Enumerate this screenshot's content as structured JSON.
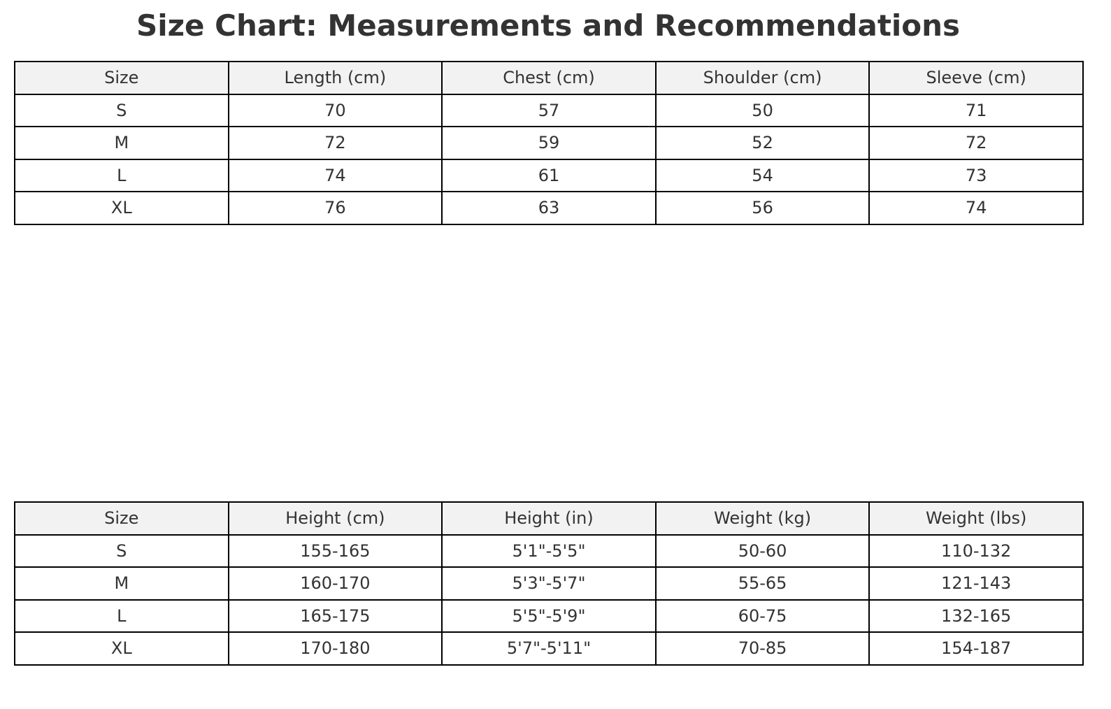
{
  "chart_data": {
    "type": "table",
    "title": "Size Chart: Measurements and Recommendations",
    "header_bg": "#f2f2f2",
    "tables": [
      {
        "columns": [
          "Size",
          "Length (cm)",
          "Chest (cm)",
          "Shoulder (cm)",
          "Sleeve (cm)"
        ],
        "rows": [
          [
            "S",
            "70",
            "57",
            "50",
            "71"
          ],
          [
            "M",
            "72",
            "59",
            "52",
            "72"
          ],
          [
            "L",
            "74",
            "61",
            "54",
            "73"
          ],
          [
            "XL",
            "76",
            "63",
            "56",
            "74"
          ]
        ]
      },
      {
        "columns": [
          "Size",
          "Height (cm)",
          "Height (in)",
          "Weight (kg)",
          "Weight (lbs)"
        ],
        "rows": [
          [
            "S",
            "155-165",
            "5'1\"-5'5\"",
            "50-60",
            "110-132"
          ],
          [
            "M",
            "160-170",
            "5'3\"-5'7\"",
            "55-65",
            "121-143"
          ],
          [
            "L",
            "165-175",
            "5'5\"-5'9\"",
            "60-75",
            "132-165"
          ],
          [
            "XL",
            "170-180",
            "5'7\"-5'11\"",
            "70-85",
            "154-187"
          ]
        ]
      }
    ]
  }
}
